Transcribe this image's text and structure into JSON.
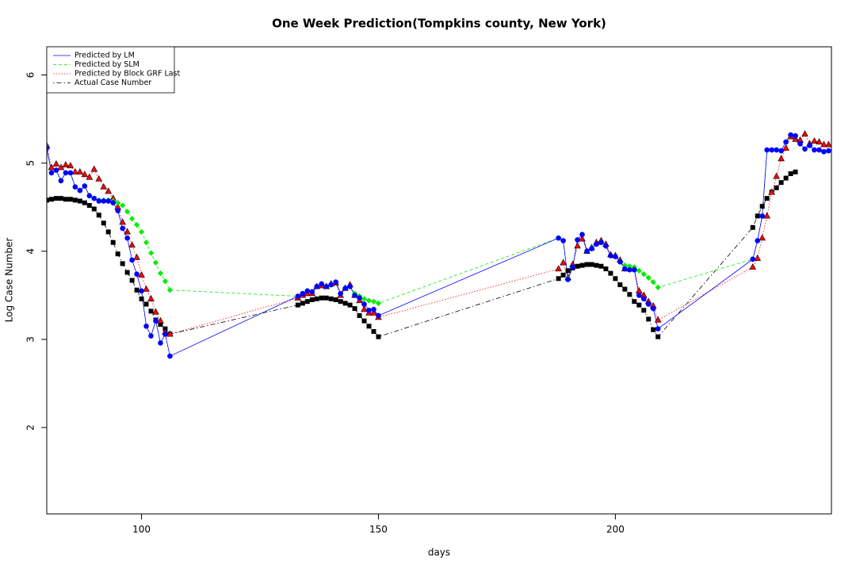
{
  "chart_data": {
    "type": "line",
    "title": "One Week Prediction(Tompkins county, New York)",
    "x_label": "days",
    "y_label": "Log Case Number",
    "xlim": [
      80,
      245.6
    ],
    "ylim": [
      1.02,
      6.32
    ],
    "xticks": [
      100,
      150,
      200
    ],
    "yticks": [
      2,
      3,
      4,
      5,
      6
    ],
    "legend_position": "top-left",
    "x": [
      80,
      81,
      82,
      83,
      84,
      85,
      86,
      87,
      88,
      89,
      90,
      91,
      92,
      93,
      94,
      95,
      96,
      97,
      98,
      99,
      100,
      101,
      102,
      103,
      104,
      105,
      106,
      133,
      134,
      135,
      136,
      137,
      138,
      139,
      140,
      141,
      142,
      143,
      144,
      145,
      146,
      147,
      148,
      149,
      150,
      188,
      189,
      190,
      191,
      192,
      193,
      194,
      195,
      196,
      197,
      198,
      199,
      200,
      201,
      202,
      203,
      204,
      205,
      206,
      207,
      208,
      209,
      229,
      230,
      231,
      232,
      233,
      234,
      235,
      236,
      237,
      238,
      239,
      240,
      241,
      242,
      243,
      244,
      245
    ],
    "series": [
      {
        "name": "Predicted by LM",
        "color": "#0000ff",
        "linestyle": "solid",
        "marker": "circle",
        "values": [
          5.17,
          4.89,
          4.92,
          4.8,
          4.89,
          4.89,
          4.73,
          4.69,
          4.74,
          4.63,
          4.6,
          4.57,
          4.57,
          4.57,
          4.55,
          4.46,
          4.26,
          4.15,
          3.9,
          3.74,
          3.55,
          3.15,
          3.04,
          3.21,
          2.96,
          3.06,
          2.81,
          3.49,
          3.52,
          3.55,
          3.54,
          3.6,
          3.63,
          3.6,
          3.62,
          3.65,
          3.52,
          3.58,
          3.6,
          3.5,
          3.47,
          3.4,
          3.33,
          3.34,
          3.27,
          4.15,
          4.12,
          3.68,
          3.82,
          4.13,
          4.19,
          4.0,
          4.03,
          4.08,
          4.1,
          4.06,
          3.95,
          3.94,
          3.88,
          3.8,
          3.79,
          3.79,
          3.5,
          3.46,
          3.4,
          3.35,
          3.12,
          3.91,
          4.12,
          4.4,
          5.15,
          5.15,
          5.15,
          5.14,
          5.24,
          5.32,
          5.31,
          5.22,
          5.16,
          5.2,
          5.15,
          5.15,
          5.13,
          5.14
        ]
      },
      {
        "name": "Predicted by SLM",
        "color": "#00ee00",
        "linestyle": "dashed",
        "marker": "diamond",
        "values": [
          5.17,
          4.89,
          4.92,
          4.8,
          4.89,
          4.89,
          4.73,
          4.69,
          4.74,
          4.63,
          4.6,
          4.58,
          4.58,
          4.58,
          4.57,
          4.55,
          4.52,
          4.45,
          4.37,
          4.3,
          4.22,
          4.1,
          3.98,
          3.87,
          3.75,
          3.66,
          3.56,
          3.49,
          3.52,
          3.55,
          3.54,
          3.6,
          3.63,
          3.6,
          3.62,
          3.65,
          3.52,
          3.58,
          3.6,
          3.52,
          3.49,
          3.46,
          3.44,
          3.43,
          3.41,
          4.15,
          4.12,
          3.69,
          3.82,
          4.13,
          4.19,
          4.0,
          4.03,
          4.08,
          4.1,
          4.06,
          3.95,
          3.94,
          3.88,
          3.84,
          3.83,
          3.82,
          3.78,
          3.74,
          3.7,
          3.65,
          3.59,
          3.91,
          4.12,
          4.4,
          5.15,
          5.15,
          5.15,
          5.14,
          5.24,
          5.32,
          5.31,
          5.22,
          5.16,
          5.2,
          5.15,
          5.15,
          5.13,
          5.14
        ]
      },
      {
        "name": "Predicted by Block GRF Last",
        "color": "#ff0000",
        "linestyle": "dotted",
        "marker": "triangle",
        "values": [
          5.2,
          4.95,
          4.99,
          4.95,
          4.98,
          4.97,
          4.9,
          4.9,
          4.87,
          4.84,
          4.93,
          4.82,
          4.73,
          4.68,
          4.6,
          4.5,
          4.33,
          4.22,
          4.07,
          3.93,
          3.73,
          3.57,
          3.46,
          3.31,
          3.21,
          3.08,
          3.06,
          3.47,
          3.5,
          3.52,
          3.52,
          3.6,
          3.61,
          3.6,
          3.63,
          3.64,
          3.5,
          3.58,
          3.62,
          3.5,
          3.44,
          3.34,
          3.3,
          3.3,
          3.25,
          3.8,
          3.87,
          3.7,
          3.85,
          4.06,
          4.14,
          4.0,
          4.04,
          4.1,
          4.12,
          4.08,
          3.96,
          3.95,
          3.9,
          3.8,
          3.8,
          3.8,
          3.55,
          3.5,
          3.43,
          3.38,
          3.22,
          3.82,
          3.92,
          4.15,
          4.4,
          4.67,
          4.85,
          5.05,
          5.17,
          5.3,
          5.27,
          5.26,
          5.33,
          5.22,
          5.25,
          5.24,
          5.21,
          5.21
        ]
      },
      {
        "name": "Actual Case Number",
        "color": "#000000",
        "linestyle": "dotdash",
        "marker": "square",
        "values": [
          4.58,
          4.59,
          4.6,
          4.6,
          4.59,
          4.59,
          4.58,
          4.57,
          4.55,
          4.52,
          4.48,
          4.41,
          4.32,
          4.22,
          4.1,
          3.97,
          3.86,
          3.76,
          3.67,
          3.56,
          3.46,
          3.4,
          3.32,
          3.22,
          3.17,
          3.12,
          3.06,
          3.39,
          3.41,
          3.43,
          3.45,
          3.46,
          3.47,
          3.47,
          3.46,
          3.45,
          3.43,
          3.41,
          3.39,
          3.35,
          3.27,
          3.21,
          3.15,
          3.09,
          3.03,
          3.69,
          3.73,
          3.78,
          3.81,
          3.83,
          3.84,
          3.85,
          3.85,
          3.84,
          3.83,
          3.8,
          3.75,
          3.69,
          3.62,
          3.57,
          3.51,
          3.43,
          3.39,
          3.33,
          3.23,
          3.11,
          3.03,
          4.27,
          4.4,
          4.51,
          4.6,
          4.67,
          4.72,
          4.78,
          4.83,
          4.88,
          4.9,
          null,
          null,
          null,
          null,
          null,
          null,
          null
        ]
      }
    ]
  }
}
